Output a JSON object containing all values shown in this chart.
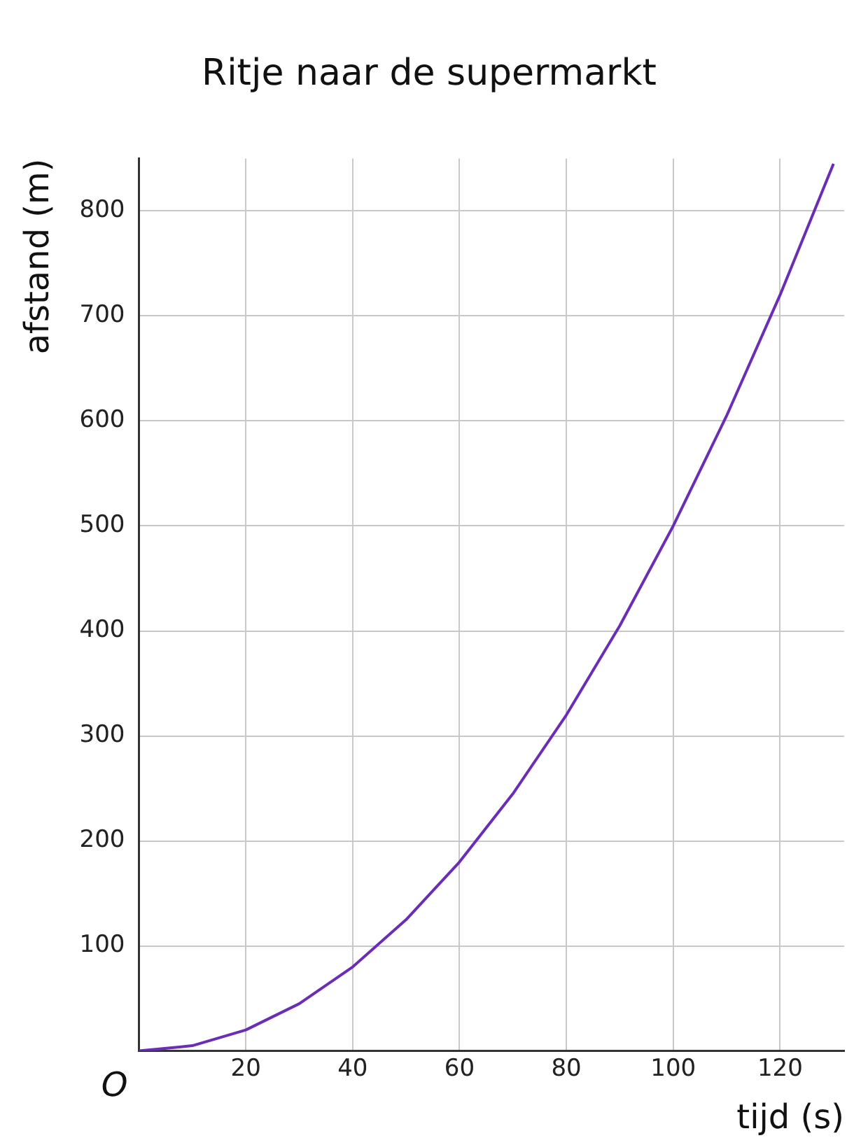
{
  "chart_data": {
    "type": "line",
    "title": "Ritje naar de supermarkt",
    "xlabel": "tijd (s)",
    "ylabel": "afstand (m)",
    "annotations": [
      "O"
    ],
    "x": [
      0,
      10,
      20,
      30,
      40,
      50,
      60,
      70,
      80,
      90,
      100,
      110,
      120,
      130
    ],
    "series": [
      {
        "color": "#6a2db5",
        "values": [
          0,
          5,
          20,
          45,
          80,
          125,
          180,
          245,
          320,
          405,
          500,
          605,
          720,
          845
        ]
      }
    ],
    "xlim": [
      0,
      132
    ],
    "ylim": [
      0,
      850
    ],
    "xticks": [
      20,
      40,
      60,
      80,
      100,
      120
    ],
    "yticks": [
      100,
      200,
      300,
      400,
      500,
      600,
      700,
      800
    ],
    "grid": true,
    "legend": false,
    "marker": "none",
    "line_style": "solid"
  }
}
